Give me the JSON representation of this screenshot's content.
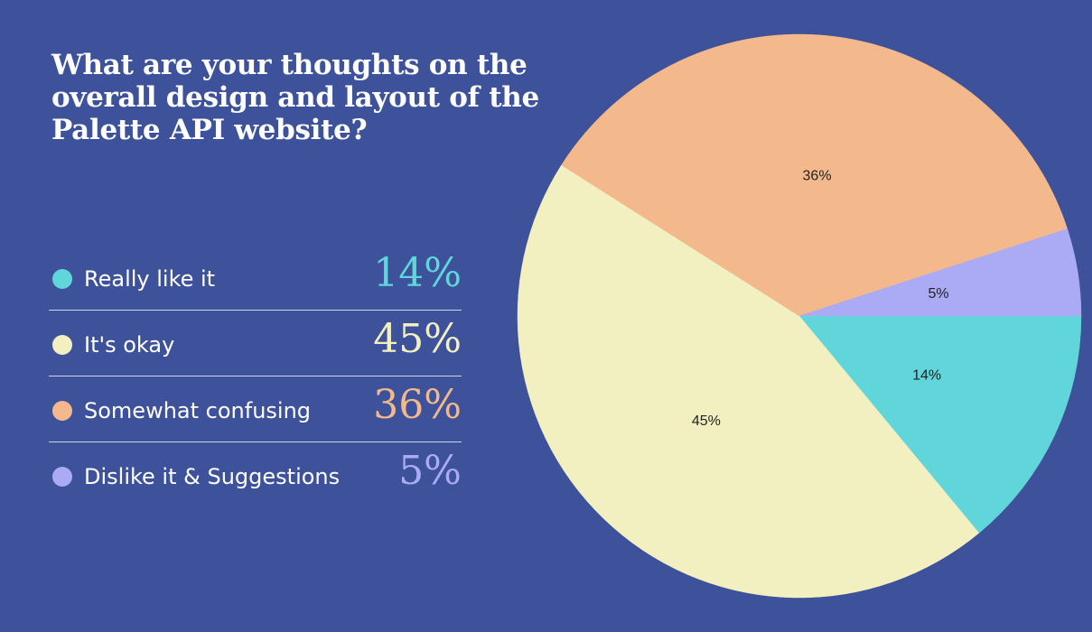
{
  "question": "What are your thoughts on the overall design and layout of the Palette API website?",
  "legend": [
    {
      "label": "Really like it",
      "percent_text": "14%",
      "color": "#60d6db"
    },
    {
      "label": "It's okay",
      "percent_text": "45%",
      "color": "#f2f0c0"
    },
    {
      "label": "Somewhat confusing",
      "percent_text": "36%",
      "color": "#f3b98d"
    },
    {
      "label": "Dislike it & Suggestions",
      "percent_text": "5%",
      "color": "#aaaaf5"
    }
  ],
  "chart_data": {
    "type": "pie",
    "title": "What are your thoughts on the overall design and layout of the Palette API website?",
    "categories": [
      "Really like it",
      "It's okay",
      "Somewhat confusing",
      "Dislike it & Suggestions"
    ],
    "values": [
      14,
      45,
      36,
      5
    ],
    "labels": [
      "14%",
      "45%",
      "36%",
      "5%"
    ],
    "colors": [
      "#60d6db",
      "#f2f0c0",
      "#f3b98d",
      "#aaaaf5"
    ],
    "legend_position": "left"
  }
}
